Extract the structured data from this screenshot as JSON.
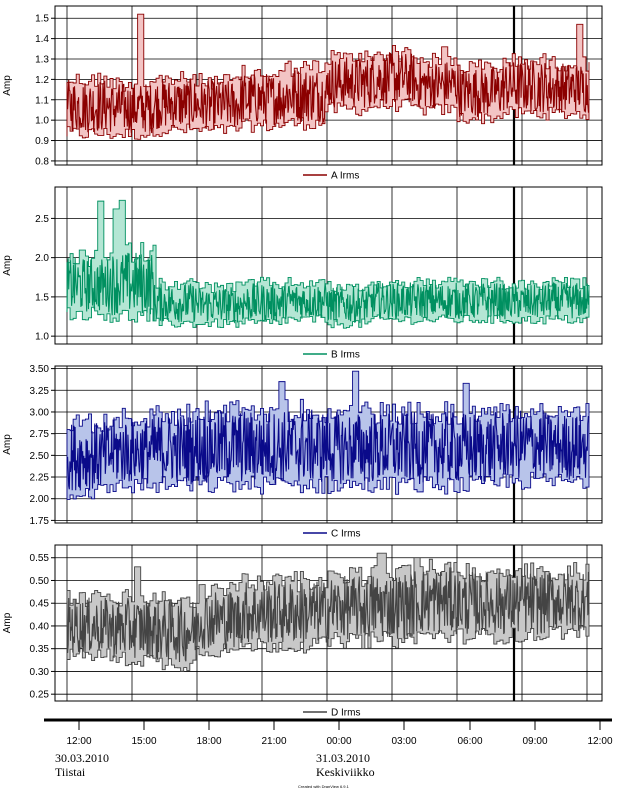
{
  "chart_data": [
    {
      "type": "area",
      "ylabel": "Amp",
      "legend": "A Irms",
      "ylim": [
        0.78,
        1.56
      ],
      "yticks": [
        "1.5",
        "1.4",
        "1.3",
        "1.2",
        "1.1",
        "1.0",
        "0.9",
        "0.8"
      ],
      "ytick_values": [
        1.5,
        1.4,
        1.3,
        1.2,
        1.1,
        1.0,
        0.9,
        0.8
      ],
      "series_color": "#8b0000",
      "fill_color": "#f3c4c4",
      "band": [
        [
          0.9,
          1.24
        ],
        [
          0.9,
          1.22
        ],
        [
          0.92,
          1.24
        ],
        [
          0.92,
          1.23
        ],
        [
          0.94,
          1.27
        ],
        [
          0.95,
          1.3
        ],
        [
          1.02,
          1.35
        ],
        [
          1.04,
          1.37
        ],
        [
          1.02,
          1.33
        ],
        [
          0.98,
          1.3
        ],
        [
          1.0,
          1.33
        ],
        [
          1.0,
          1.32
        ]
      ],
      "spikes": [
        [
          0.14,
          1.52
        ],
        [
          0.72,
          1.36
        ],
        [
          0.98,
          1.47
        ]
      ]
    },
    {
      "type": "area",
      "ylabel": "Amp",
      "legend": "B Irms",
      "ylim": [
        0.9,
        2.9
      ],
      "yticks": [
        "2.5",
        "2.0",
        "1.5",
        "1.0"
      ],
      "ytick_values": [
        2.5,
        2.0,
        1.5,
        1.0
      ],
      "series_color": "#009060",
      "fill_color": "#b4e6d4",
      "band": [
        [
          1.2,
          2.1
        ],
        [
          1.15,
          2.2
        ],
        [
          1.1,
          1.75
        ],
        [
          1.1,
          1.7
        ],
        [
          1.1,
          1.75
        ],
        [
          1.15,
          1.75
        ],
        [
          1.1,
          1.7
        ],
        [
          1.15,
          1.75
        ],
        [
          1.15,
          1.75
        ],
        [
          1.15,
          1.75
        ],
        [
          1.15,
          1.72
        ],
        [
          1.15,
          1.75
        ]
      ],
      "spikes": [
        [
          0.06,
          2.72
        ],
        [
          0.1,
          2.73
        ],
        [
          0.09,
          2.62
        ]
      ]
    },
    {
      "type": "area",
      "ylabel": "Amp",
      "legend": "C Irms",
      "ylim": [
        1.72,
        3.53
      ],
      "yticks": [
        "3.50",
        "3.25",
        "3.00",
        "2.75",
        "2.50",
        "2.25",
        "2.00",
        "1.75"
      ],
      "ytick_values": [
        3.5,
        3.25,
        3.0,
        2.75,
        2.5,
        2.25,
        2.0,
        1.75
      ],
      "series_color": "#0a0a8a",
      "fill_color": "#b8c4ea",
      "band": [
        [
          1.98,
          3.0
        ],
        [
          2.05,
          3.05
        ],
        [
          2.05,
          3.1
        ],
        [
          2.05,
          3.15
        ],
        [
          2.05,
          3.15
        ],
        [
          2.05,
          3.15
        ],
        [
          2.05,
          3.12
        ],
        [
          2.05,
          3.12
        ],
        [
          2.05,
          3.12
        ],
        [
          2.05,
          3.12
        ],
        [
          2.1,
          3.15
        ],
        [
          2.1,
          3.1
        ]
      ],
      "spikes": [
        [
          0.41,
          3.35
        ],
        [
          0.55,
          3.47
        ],
        [
          0.76,
          3.33
        ]
      ]
    },
    {
      "type": "area",
      "ylabel": "Amp",
      "legend": "D Irms",
      "ylim": [
        0.235,
        0.578
      ],
      "yticks": [
        "0.55",
        "0.50",
        "0.45",
        "0.40",
        "0.35",
        "0.30",
        "0.25"
      ],
      "ytick_values": [
        0.55,
        0.5,
        0.45,
        0.4,
        0.35,
        0.3,
        0.25
      ],
      "series_color": "#444444",
      "fill_color": "#c8c8c8",
      "band": [
        [
          0.32,
          0.48
        ],
        [
          0.31,
          0.48
        ],
        [
          0.3,
          0.48
        ],
        [
          0.33,
          0.5
        ],
        [
          0.34,
          0.52
        ],
        [
          0.34,
          0.52
        ],
        [
          0.35,
          0.53
        ],
        [
          0.35,
          0.54
        ],
        [
          0.36,
          0.55
        ],
        [
          0.36,
          0.54
        ],
        [
          0.36,
          0.54
        ],
        [
          0.37,
          0.54
        ]
      ],
      "spikes": [
        [
          0.13,
          0.53
        ],
        [
          0.6,
          0.56
        ],
        [
          0.67,
          0.55
        ]
      ]
    }
  ],
  "time_axis": {
    "tick_labels": [
      "12:00",
      "15:00",
      "18:00",
      "21:00",
      "00:00",
      "03:00",
      "06:00",
      "09:00",
      "12:00"
    ],
    "dates": [
      {
        "date": "30.03.2010",
        "day": "Tiistai"
      },
      {
        "date": "31.03.2010",
        "day": "Keskiviikko"
      }
    ],
    "credit": "Created with DranView 6.9.1"
  }
}
